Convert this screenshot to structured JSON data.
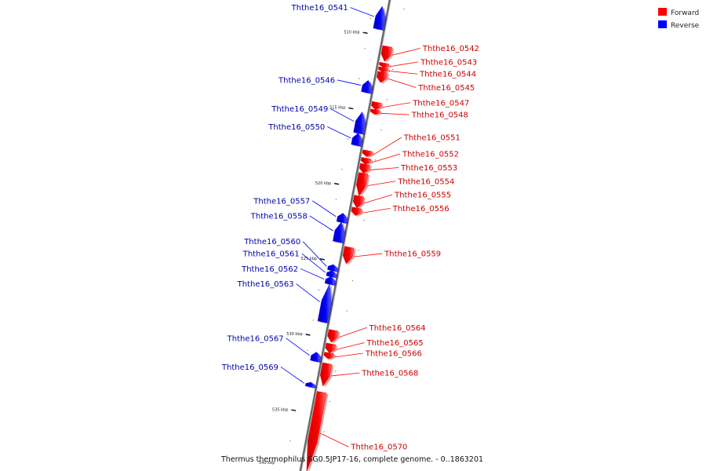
{
  "legend": [
    {
      "label": "Forward",
      "color": "#ff0000"
    },
    {
      "label": "Reverse",
      "color": "#0000ff"
    }
  ],
  "caption": "Thermus thermophilus SG0.5JP17-16, complete genome. - 0..1863201",
  "colors": {
    "forward": "#ff0000",
    "reverse": "#0000ff",
    "backbone": "#888888"
  },
  "scale": {
    "start_kbp": 507.6,
    "end_kbp": 538.8,
    "ticks": [
      {
        "kbp": 510,
        "label": "510 kbp"
      },
      {
        "kbp": 515,
        "label": "515 kbp"
      },
      {
        "kbp": 520,
        "label": "520 kbp"
      },
      {
        "kbp": 525,
        "label": "525 kbp"
      },
      {
        "kbp": 530,
        "label": "530 kbp"
      },
      {
        "kbp": 535,
        "label": "535 kbp"
      }
    ],
    "last_tick_label": "540 kbp"
  },
  "genes": [
    {
      "id": "Ththe16_0541",
      "strand": "reverse",
      "start_kbp": 508.1,
      "end_kbp": 509.6,
      "label_kbp": 508.1
    },
    {
      "id": "Ththe16_0542",
      "strand": "forward",
      "start_kbp": 510.6,
      "end_kbp": 511.6,
      "label_kbp": 510.8
    },
    {
      "id": "Ththe16_0543",
      "strand": "forward",
      "start_kbp": 511.7,
      "end_kbp": 512.0,
      "label_kbp": 511.7
    },
    {
      "id": "Ththe16_0544",
      "strand": "forward",
      "start_kbp": 512.0,
      "end_kbp": 512.3,
      "label_kbp": 512.5
    },
    {
      "id": "Ththe16_0545",
      "strand": "forward",
      "start_kbp": 512.3,
      "end_kbp": 513.0,
      "label_kbp": 513.4
    },
    {
      "id": "Ththe16_0546",
      "strand": "reverse",
      "start_kbp": 513.0,
      "end_kbp": 513.8,
      "label_kbp": 512.9
    },
    {
      "id": "Ththe16_0547",
      "strand": "forward",
      "start_kbp": 514.3,
      "end_kbp": 514.8,
      "label_kbp": 514.4
    },
    {
      "id": "Ththe16_0548",
      "strand": "forward",
      "start_kbp": 514.8,
      "end_kbp": 515.1,
      "label_kbp": 515.2
    },
    {
      "id": "Ththe16_0549",
      "strand": "reverse",
      "start_kbp": 515.1,
      "end_kbp": 516.5,
      "label_kbp": 514.8
    },
    {
      "id": "Ththe16_0550",
      "strand": "reverse",
      "start_kbp": 516.5,
      "end_kbp": 517.3,
      "label_kbp": 516.0
    },
    {
      "id": "Ththe16_0551",
      "strand": "forward",
      "start_kbp": 517.5,
      "end_kbp": 517.9,
      "label_kbp": 516.7
    },
    {
      "id": "Ththe16_0552",
      "strand": "forward",
      "start_kbp": 518.0,
      "end_kbp": 518.4,
      "label_kbp": 517.8
    },
    {
      "id": "Ththe16_0553",
      "strand": "forward",
      "start_kbp": 518.4,
      "end_kbp": 519.0,
      "label_kbp": 518.7
    },
    {
      "id": "Ththe16_0554",
      "strand": "forward",
      "start_kbp": 519.0,
      "end_kbp": 520.5,
      "label_kbp": 519.6
    },
    {
      "id": "Ththe16_0555",
      "strand": "forward",
      "start_kbp": 520.5,
      "end_kbp": 521.3,
      "label_kbp": 520.5
    },
    {
      "id": "Ththe16_0556",
      "strand": "forward",
      "start_kbp": 521.3,
      "end_kbp": 521.8,
      "label_kbp": 521.4
    },
    {
      "id": "Ththe16_0557",
      "strand": "reverse",
      "start_kbp": 521.8,
      "end_kbp": 522.4,
      "label_kbp": 520.9
    },
    {
      "id": "Ththe16_0558",
      "strand": "reverse",
      "start_kbp": 522.4,
      "end_kbp": 523.7,
      "label_kbp": 521.9
    },
    {
      "id": "Ththe16_0559",
      "strand": "forward",
      "start_kbp": 523.9,
      "end_kbp": 525.0,
      "label_kbp": 524.4
    },
    {
      "id": "Ththe16_0560",
      "strand": "reverse",
      "start_kbp": 525.2,
      "end_kbp": 525.6,
      "label_kbp": 523.6
    },
    {
      "id": "Ththe16_0561",
      "strand": "reverse",
      "start_kbp": 525.6,
      "end_kbp": 526.0,
      "label_kbp": 524.4
    },
    {
      "id": "Ththe16_0562",
      "strand": "reverse",
      "start_kbp": 526.0,
      "end_kbp": 526.5,
      "label_kbp": 525.4
    },
    {
      "id": "Ththe16_0563",
      "strand": "reverse",
      "start_kbp": 526.5,
      "end_kbp": 529.0,
      "label_kbp": 526.4
    },
    {
      "id": "Ththe16_0564",
      "strand": "forward",
      "start_kbp": 529.4,
      "end_kbp": 530.2,
      "label_kbp": 529.3
    },
    {
      "id": "Ththe16_0565",
      "strand": "forward",
      "start_kbp": 530.3,
      "end_kbp": 530.9,
      "label_kbp": 530.3
    },
    {
      "id": "Ththe16_0566",
      "strand": "forward",
      "start_kbp": 530.9,
      "end_kbp": 531.3,
      "label_kbp": 531.0
    },
    {
      "id": "Ththe16_0567",
      "strand": "reverse",
      "start_kbp": 531.0,
      "end_kbp": 531.6,
      "label_kbp": 530.0
    },
    {
      "id": "Ththe16_0568",
      "strand": "forward",
      "start_kbp": 531.6,
      "end_kbp": 533.1,
      "label_kbp": 532.3
    },
    {
      "id": "Ththe16_0569",
      "strand": "reverse",
      "start_kbp": 533.0,
      "end_kbp": 533.3,
      "label_kbp": 531.9
    },
    {
      "id": "Ththe16_0570",
      "strand": "forward",
      "start_kbp": 533.5,
      "end_kbp": 538.8,
      "label_kbp": 537.2
    }
  ]
}
